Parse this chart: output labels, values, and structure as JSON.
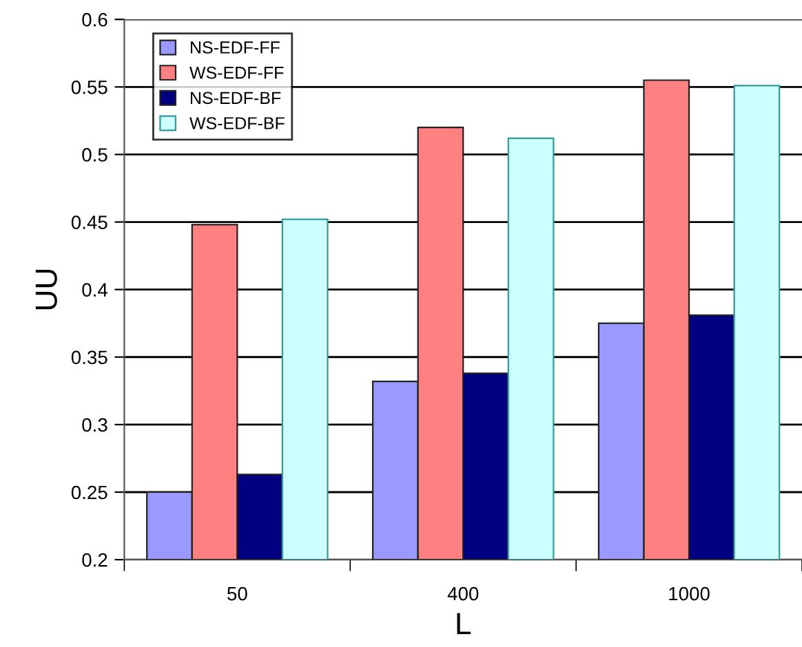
{
  "chart_data": {
    "type": "bar",
    "xlabel": "L",
    "ylabel": "UU",
    "categories": [
      "50",
      "400",
      "1000"
    ],
    "series": [
      {
        "name": "NS-EDF-FF",
        "color": "#9999ff",
        "values": [
          0.25,
          0.332,
          0.375
        ]
      },
      {
        "name": "WS-EDF-FF",
        "color": "#ff8080",
        "values": [
          0.448,
          0.52,
          0.555
        ]
      },
      {
        "name": "NS-EDF-BF",
        "color": "#000080",
        "values": [
          0.263,
          0.338,
          0.381
        ]
      },
      {
        "name": "WS-EDF-BF",
        "color": "#ccffff",
        "values": [
          0.452,
          0.512,
          0.551
        ]
      }
    ],
    "ylim": [
      0.2,
      0.6
    ],
    "yticks": [
      0.2,
      0.25,
      0.3,
      0.35,
      0.4,
      0.45,
      0.5,
      0.55,
      0.6
    ],
    "grid": "y",
    "legend": "top left"
  }
}
